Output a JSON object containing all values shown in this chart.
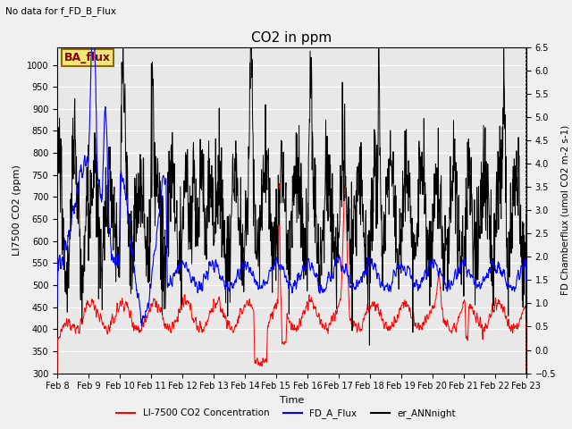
{
  "title": "CO2 in ppm",
  "top_left_text": "No data for f_FD_B_Flux",
  "ba_flux_label": "BA_flux",
  "xlabel": "Time",
  "ylabel_left": "LI7500 CO2 (ppm)",
  "ylabel_right": "FD Chamberflux (umol CO2 m-2 s-1)",
  "ylim_left": [
    300,
    1040
  ],
  "ylim_right": [
    -0.5,
    6.5
  ],
  "yticks_left": [
    300,
    350,
    400,
    450,
    500,
    550,
    600,
    650,
    700,
    750,
    800,
    850,
    900,
    950,
    1000
  ],
  "yticks_right": [
    -0.5,
    0.0,
    0.5,
    1.0,
    1.5,
    2.0,
    2.5,
    3.0,
    3.5,
    4.0,
    4.5,
    5.0,
    5.5,
    6.0,
    6.5
  ],
  "xtick_labels": [
    "Feb 8",
    "Feb 9",
    "Feb 10",
    "Feb 11",
    "Feb 12",
    "Feb 13",
    "Feb 14",
    "Feb 15",
    "Feb 16",
    "Feb 17",
    "Feb 18",
    "Feb 19",
    "Feb 20",
    "Feb 21",
    "Feb 22",
    "Feb 23"
  ],
  "legend_labels": [
    "LI-7500 CO2 Concentration",
    "FD_A_Flux",
    "er_ANNnight"
  ],
  "line_colors": [
    "red",
    "blue",
    "black"
  ],
  "bg_color": "#e8e8e8",
  "fig_bg_color": "#f0f0f0",
  "n_days": 15,
  "pts_per_day": 96
}
